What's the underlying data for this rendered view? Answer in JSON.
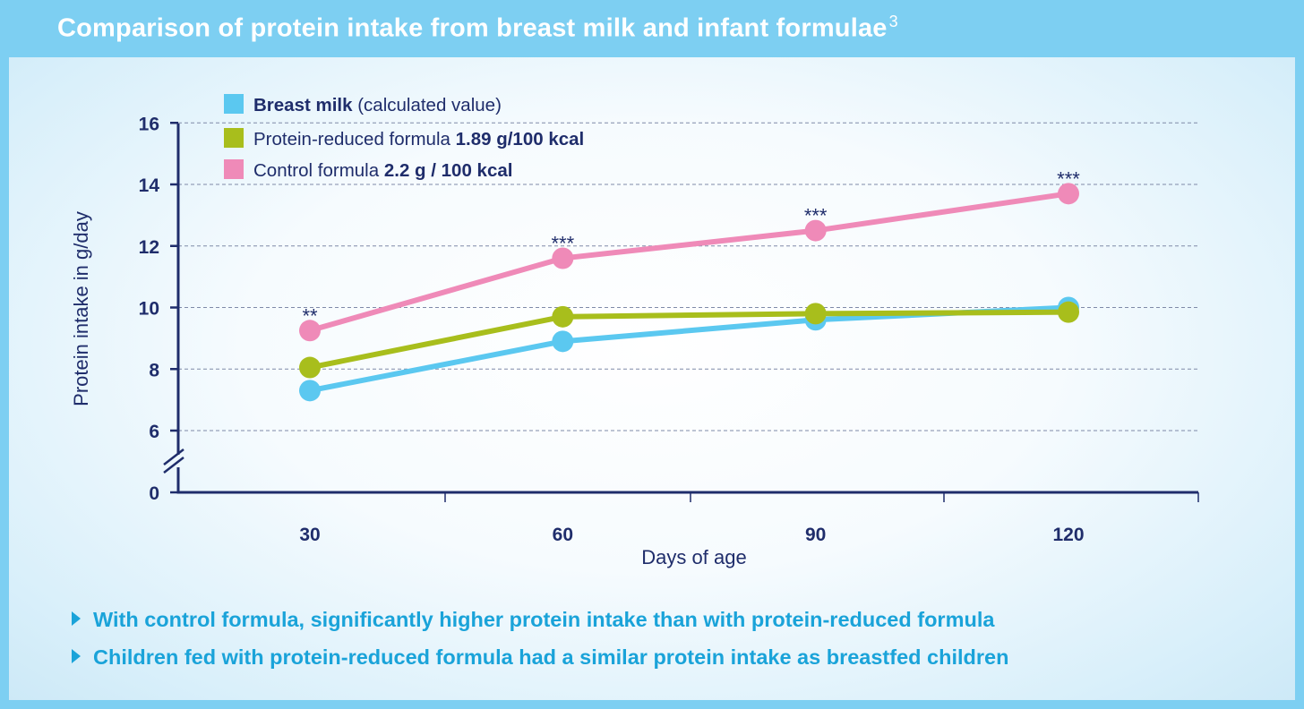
{
  "header": {
    "title": "Comparison of protein intake from breast milk and infant formulae",
    "superscript": "3"
  },
  "colors": {
    "breast_milk": "#5bc8f0",
    "reduced_formula": "#a8be1c",
    "control_formula": "#ef8ab8",
    "axis": "#1f2d6b",
    "header_bg": "#7dcff2",
    "bullet_text": "#1aa3d9"
  },
  "bullets": [
    "With control formula, significantly higher protein intake than with protein-reduced formula",
    "Children fed with protein-reduced formula had a similar protein intake as breastfed children"
  ],
  "chart_data": {
    "type": "line",
    "xlabel": "Days of age",
    "ylabel": "Protein intake in g/day",
    "x": [
      30,
      60,
      90,
      120
    ],
    "yticks": [
      0,
      6,
      8,
      10,
      12,
      14,
      16
    ],
    "ylim": [
      0,
      16
    ],
    "axis_break": "between 0 and 6",
    "grid": "horizontal dashed",
    "legend_position": "top-left",
    "series": [
      {
        "key": "breast_milk",
        "name_bold": "Breast milk",
        "name_rest": " (calculated value)",
        "color": "#5bc8f0",
        "values": [
          7.3,
          8.9,
          9.6,
          10.0
        ]
      },
      {
        "key": "reduced_formula",
        "name_plain": "Protein-reduced formula ",
        "name_bold_tail": "1.89 g/100 kcal",
        "color": "#a8be1c",
        "values": [
          8.05,
          9.7,
          9.8,
          9.85
        ]
      },
      {
        "key": "control_formula",
        "name_plain": "Control formula ",
        "name_bold_tail": "2.2 g / 100 kcal",
        "color": "#ef8ab8",
        "values": [
          9.25,
          11.6,
          12.5,
          13.7
        ]
      }
    ],
    "annotations": [
      "**",
      "***",
      "***",
      "***"
    ]
  }
}
